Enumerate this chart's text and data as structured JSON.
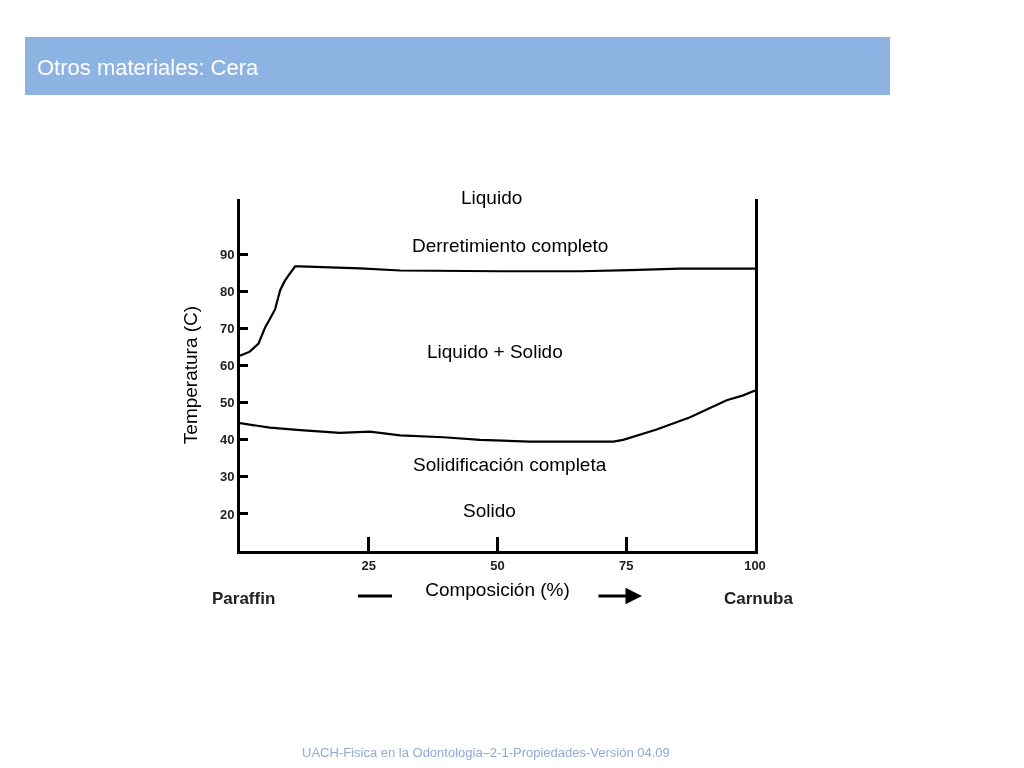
{
  "chart_data": {
    "type": "line",
    "title": "Otros materiales: Cera",
    "xlabel": "Composición (%)",
    "ylabel": "Temperatura (C)",
    "xlim": [
      0,
      100
    ],
    "xticks": [
      25,
      50,
      75,
      100
    ],
    "ylim": [
      10,
      105
    ],
    "yticks": [
      20,
      30,
      40,
      50,
      60,
      70,
      80,
      90
    ],
    "series": [
      {
        "name": "Derretimiento completo",
        "color": "#000000",
        "x": [
          0,
          1.9,
          3.6,
          4.9,
          5.8,
          6.8,
          7.8,
          8.7,
          9.7,
          10.7,
          11.7,
          23.3,
          31.1,
          50.5,
          66,
          75.7,
          85.4,
          100
        ],
        "values": [
          62.7,
          63.8,
          66,
          70.4,
          72.6,
          75.2,
          80.4,
          82.9,
          84.9,
          86.8,
          86.8,
          86.3,
          85.7,
          85.5,
          85.5,
          85.8,
          86.2,
          86.2
        ]
      },
      {
        "name": "Solidificación completa",
        "color": "#000000",
        "x": [
          0,
          5.8,
          11.7,
          19.4,
          25.2,
          31.1,
          39.5,
          46.6,
          56.3,
          72.5,
          74.4,
          80.9,
          87.4,
          94.5,
          97.7,
          100
        ],
        "values": [
          44.5,
          43.3,
          42.6,
          41.9,
          42.2,
          41.2,
          40.7,
          40,
          39.5,
          39.5,
          40,
          42.8,
          46.1,
          50.7,
          52,
          53.3
        ]
      }
    ],
    "annotations": [
      "Liquido",
      "Liquido + Solido",
      "Solido",
      "Paraffin",
      "Carnuba",
      "UACH-Fisica en la Odontologia–2-1-Propiedades-Versión 04.09"
    ]
  }
}
